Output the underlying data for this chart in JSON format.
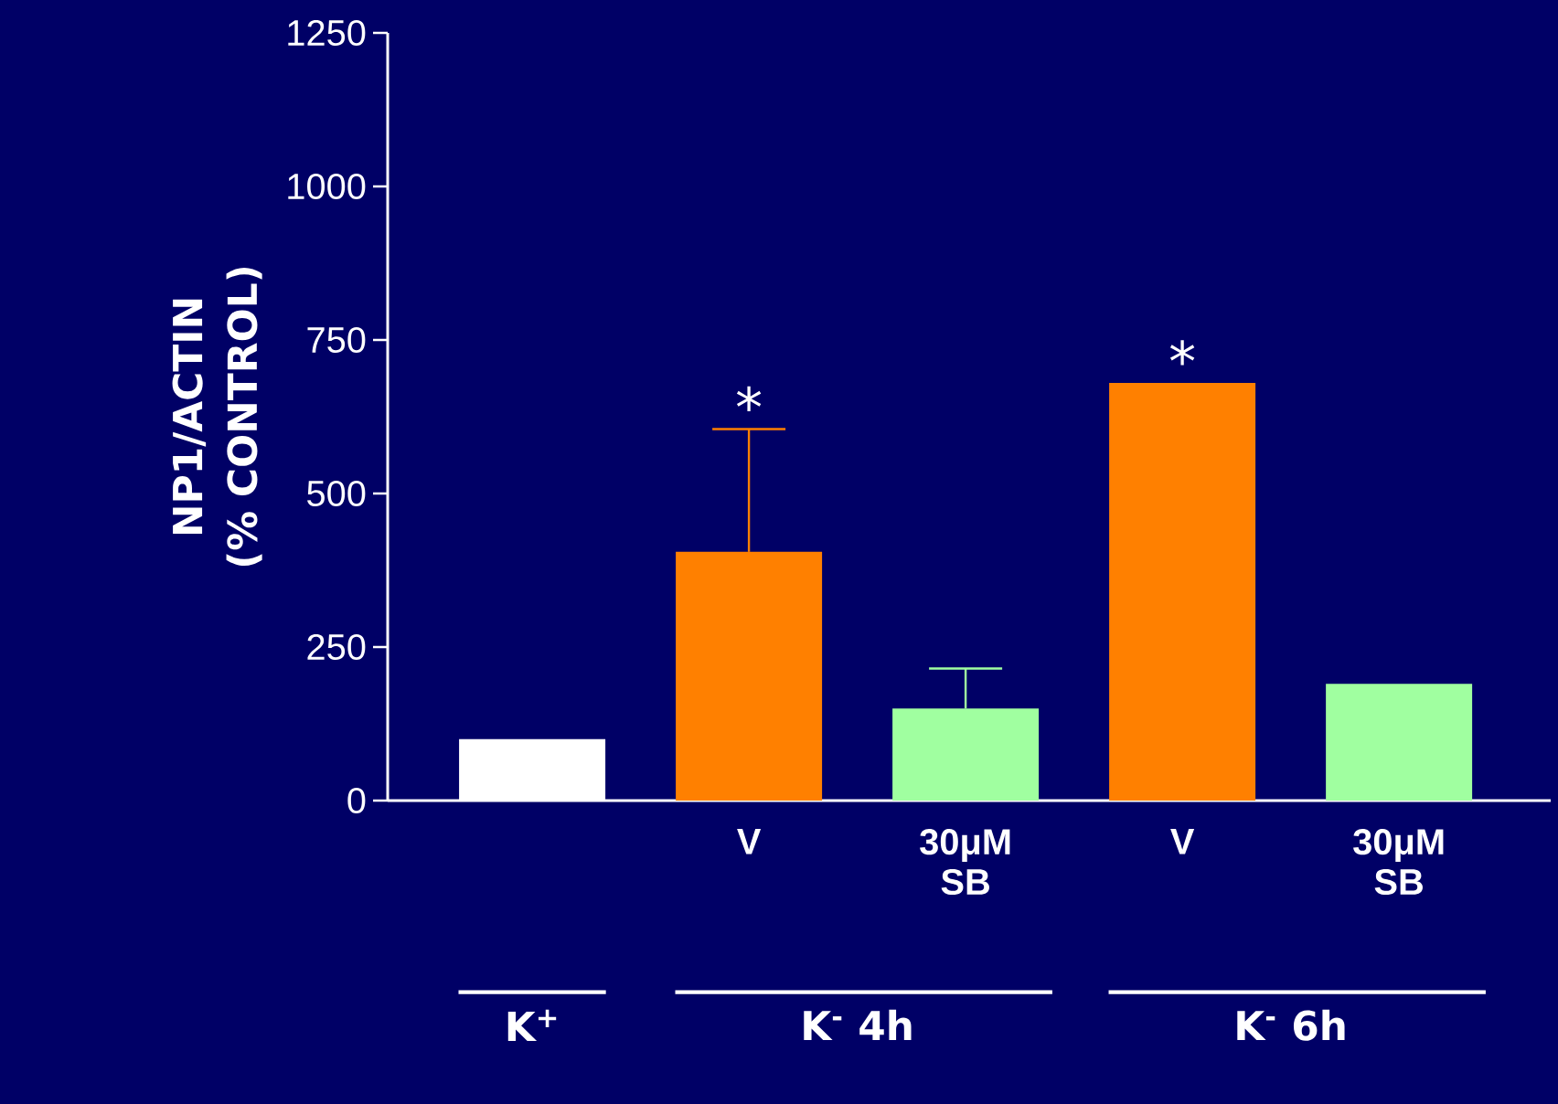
{
  "chart_data": {
    "type": "bar",
    "ylabel": "NP1/ACTIN (% CONTROL)",
    "categories": [
      null,
      "V",
      "30μM SB",
      "V",
      "30μM SB"
    ],
    "values": [
      100,
      405,
      150,
      680,
      190
    ],
    "colors": [
      "#ffffff",
      "#ff8000",
      "#a0ffa0",
      "#ff8000",
      "#a0ffa0"
    ],
    "errors": [
      null,
      [
        405,
        605
      ],
      [
        150,
        215
      ],
      null,
      null
    ],
    "value_labels": [
      null,
      "*",
      null,
      "*",
      null
    ],
    "ylim": [
      0,
      1250
    ],
    "yticks": [
      0,
      250,
      500,
      750,
      1000,
      1250
    ],
    "annotations": [
      "K$^{+}$",
      "K$^{-}$ 4h",
      "K$^{-}$ 6h"
    ],
    "grid": false
  }
}
